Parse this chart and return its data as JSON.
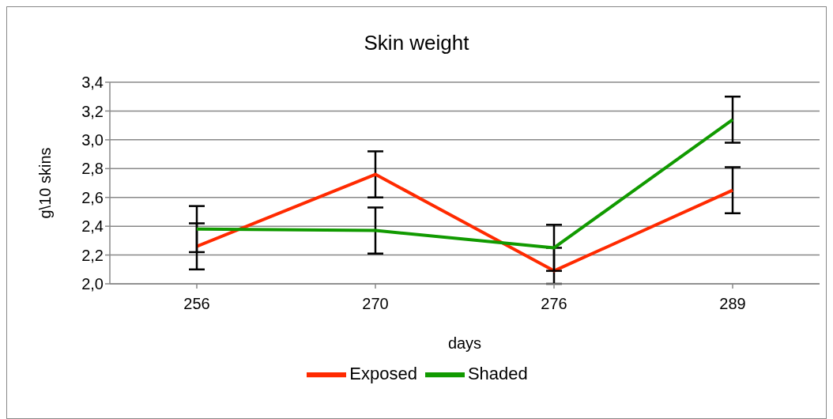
{
  "chart_data": {
    "type": "line",
    "title": "Skin weight",
    "xlabel": "days",
    "ylabel": "g\\10 skins",
    "categories": [
      "256",
      "270",
      "276",
      "289"
    ],
    "series": [
      {
        "name": "Exposed",
        "color": "#ff2a00",
        "values": [
          2.26,
          2.76,
          2.09,
          2.65
        ],
        "errors": [
          0.16,
          0.16,
          [
            2.0,
            2.25
          ],
          0.16
        ]
      },
      {
        "name": "Shaded",
        "color": "#119a00",
        "values": [
          2.38,
          2.37,
          2.25,
          3.14
        ],
        "errors": [
          0.16,
          0.16,
          0.16,
          0.16
        ]
      }
    ],
    "ylim": [
      2.0,
      3.4
    ],
    "yticks": [
      {
        "value": 2.0,
        "label": "2,0"
      },
      {
        "value": 2.2,
        "label": "2,2"
      },
      {
        "value": 2.4,
        "label": "2,4"
      },
      {
        "value": 2.6,
        "label": "2,6"
      },
      {
        "value": 2.8,
        "label": "2,8"
      },
      {
        "value": 3.0,
        "label": "3,0"
      },
      {
        "value": 3.2,
        "label": "3,2"
      },
      {
        "value": 3.4,
        "label": "3,4"
      }
    ],
    "grid": "y",
    "legend": "bottom",
    "marker": "none",
    "line_style": "solid"
  }
}
